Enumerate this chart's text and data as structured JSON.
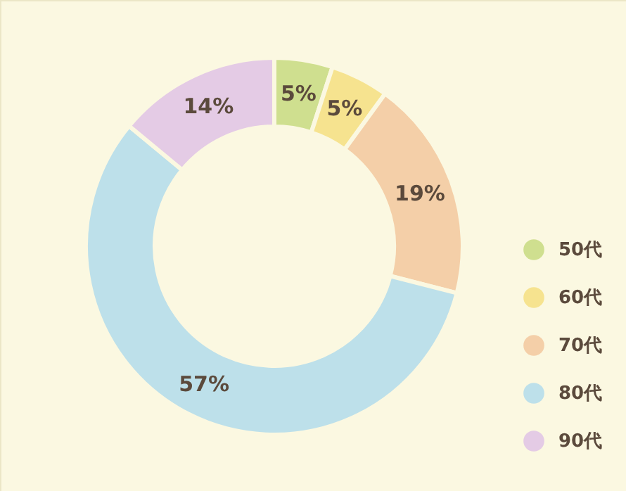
{
  "chart_data": {
    "type": "donut",
    "categories": [
      "50代",
      "60代",
      "70代",
      "80代",
      "90代"
    ],
    "values": [
      5,
      5,
      19,
      57,
      14
    ],
    "colors": [
      "#cfdf8f",
      "#f6e38f",
      "#f4cfa8",
      "#bde0ea",
      "#e4cbe5"
    ],
    "value_labels": [
      "5%",
      "5%",
      "19%",
      "57%",
      "14%"
    ],
    "legend": "right"
  }
}
